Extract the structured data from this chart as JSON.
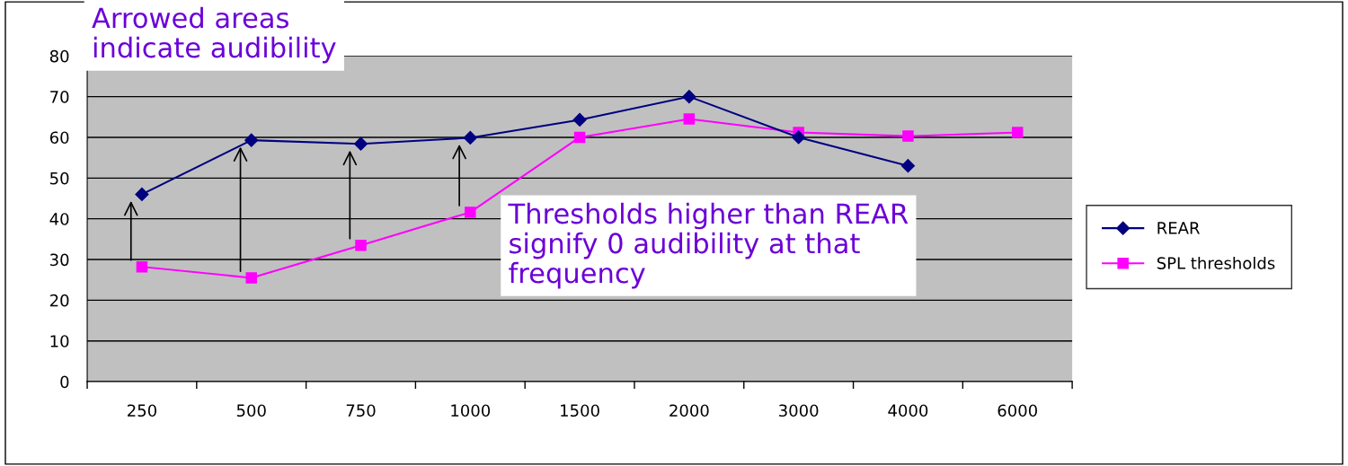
{
  "chart_data": {
    "type": "line",
    "categories": [
      "250",
      "500",
      "750",
      "1000",
      "1500",
      "2000",
      "3000",
      "4000",
      "6000"
    ],
    "series": [
      {
        "name": "REAR",
        "color": "#000080",
        "marker": "diamond",
        "values": [
          46,
          59.3,
          58.4,
          59.9,
          64.3,
          70,
          60,
          53,
          null
        ]
      },
      {
        "name": "SPL thresholds",
        "color": "#ff00ff",
        "marker": "square",
        "values": [
          28.2,
          25.5,
          33.5,
          41.6,
          60,
          64.5,
          61.2,
          60.3,
          61.2
        ]
      }
    ],
    "ylim": [
      0,
      80
    ],
    "yticks": [
      0,
      10,
      20,
      30,
      40,
      50,
      60,
      70,
      80
    ],
    "grid": "y",
    "legend": "right",
    "line_style": "solid",
    "annotations": [
      "Arrowed areas\nindicate audibility",
      "Thresholds higher than REAR\nsignify 0 audibility at that\nfrequency"
    ]
  }
}
